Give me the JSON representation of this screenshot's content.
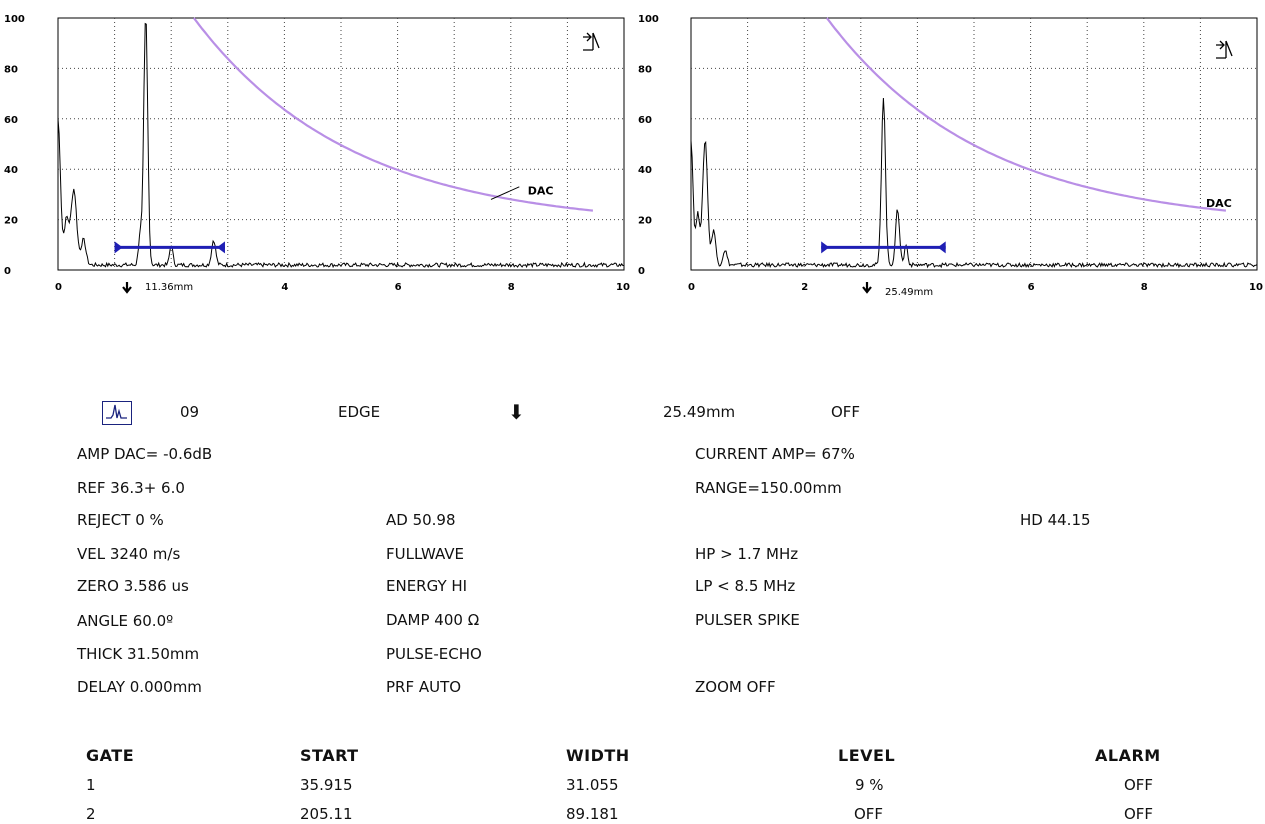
{
  "scopes": [
    {
      "y_ticks": [
        "100",
        "80",
        "60",
        "40",
        "20",
        "0"
      ],
      "x_ticks": [
        "0",
        "4",
        "6",
        "8",
        "10"
      ],
      "x_tick_values": [
        0,
        4,
        6,
        8,
        10
      ],
      "dac_label": "DAC",
      "marker_label": "11.36mm",
      "gate": {
        "start": 1.0,
        "end": 2.95,
        "level": 9
      }
    },
    {
      "y_ticks": [
        "100",
        "80",
        "60",
        "40",
        "20",
        "0"
      ],
      "x_ticks": [
        "0",
        "2",
        "6",
        "8",
        "10"
      ],
      "x_tick_values": [
        0,
        2,
        6,
        8,
        10
      ],
      "dac_label": "DAC",
      "marker_label": "25.49mm",
      "gate": {
        "start": 2.3,
        "end": 4.5,
        "level": 9
      }
    }
  ],
  "status": {
    "number": "09",
    "mode": "EDGE",
    "arrow": "⬇",
    "distance": "25.49mm",
    "state": "OFF"
  },
  "params": {
    "amp_dac": "AMP DAC= -0.6dB",
    "ref": "REF 36.3+ 6.0",
    "reject": "REJECT 0 %",
    "vel": "VEL 3240 m/s",
    "zero": "ZERO 3.586 us",
    "angle": "ANGLE 60.0º",
    "thick": "THICK 31.50mm",
    "delay": "DELAY 0.000mm",
    "ad": "AD 50.98",
    "fullwave": "FULLWAVE",
    "energy": "ENERGY HI",
    "damp": "DAMP 400 Ω",
    "pulse_echo": "PULSE-ECHO",
    "prf": "PRF AUTO",
    "current_amp": "CURRENT AMP= 67%",
    "range": "RANGE=150.00mm",
    "hd": "HD 44.15",
    "hp": "HP > 1.7 MHz",
    "lp": "LP < 8.5 MHz",
    "pulser": "PULSER SPIKE",
    "zoom": "ZOOM OFF"
  },
  "gate_table": {
    "headers": [
      "GATE",
      "START",
      "WIDTH",
      "LEVEL",
      "ALARM"
    ],
    "rows": [
      [
        "1",
        "35.915",
        "31.055",
        "9 %",
        "OFF"
      ],
      [
        "2",
        "205.11",
        "89.181",
        "OFF",
        "OFF"
      ]
    ]
  },
  "colors": {
    "dac_curve": "#b98fe6",
    "gate": "#1f1fb4",
    "grid": "#444444",
    "signal": "#000000"
  }
}
